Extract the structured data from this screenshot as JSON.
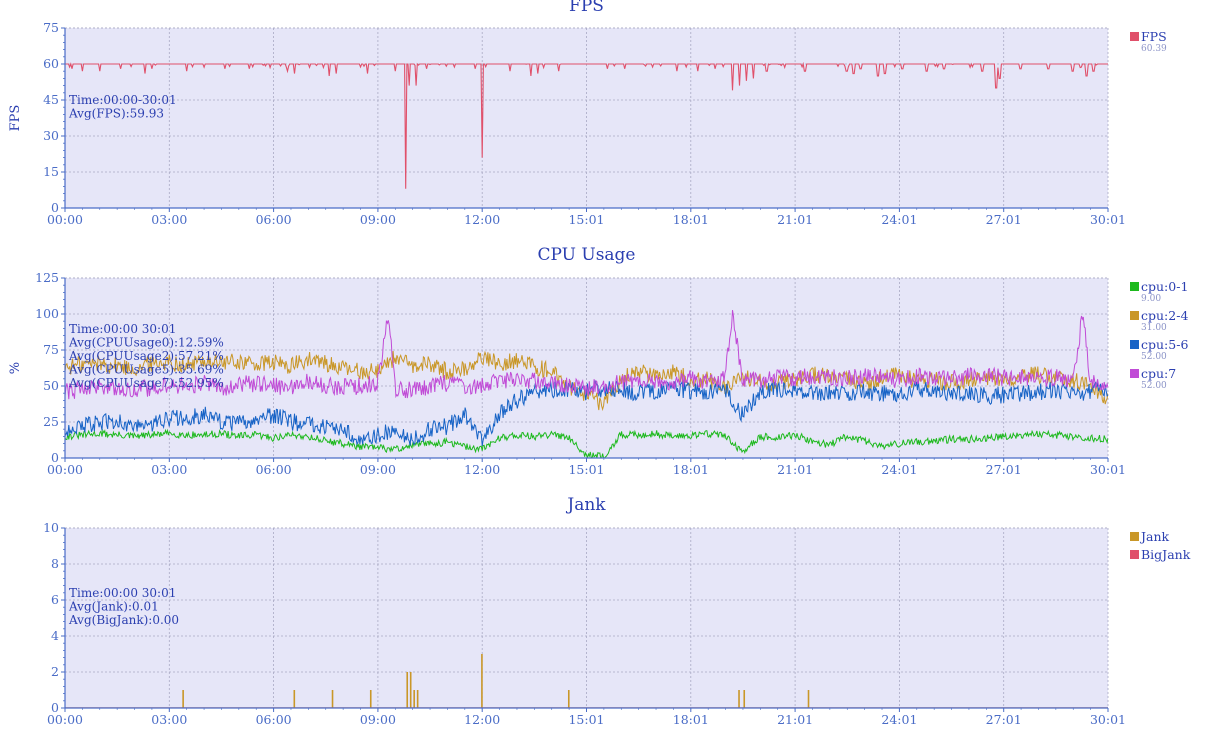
{
  "x_axis_ticks": [
    "00:00",
    "03:00",
    "06:00",
    "09:00",
    "12:00",
    "15:01",
    "18:01",
    "21:01",
    "24:01",
    "27:01",
    "30:01"
  ],
  "chart_data": [
    {
      "type": "line",
      "title": "FPS",
      "ylabel": "FPS",
      "ylim": [
        0,
        75
      ],
      "yticks": [
        0,
        15,
        30,
        45,
        60,
        75
      ],
      "x_unit": "minutes",
      "xlim": [
        0,
        30.02
      ],
      "grid": true,
      "legend_position": "right",
      "annotation": [
        "Time:00:00-30:01",
        "Avg(FPS):59.93"
      ],
      "baseline_series": [
        {
          "name": "FPS",
          "color": "#e0506a",
          "baseline": 60,
          "legend_value": "60.39",
          "dips": [
            [
              0.2,
              58
            ],
            [
              0.5,
              57
            ],
            [
              1.0,
              57
            ],
            [
              1.6,
              58
            ],
            [
              2.3,
              56
            ],
            [
              2.5,
              58
            ],
            [
              3.5,
              57
            ],
            [
              4.6,
              58
            ],
            [
              5.3,
              58
            ],
            [
              6.4,
              57
            ],
            [
              6.6,
              56
            ],
            [
              7.6,
              55
            ],
            [
              7.8,
              56
            ],
            [
              8.7,
              56
            ],
            [
              9.5,
              57
            ],
            [
              9.8,
              8
            ],
            [
              9.9,
              51
            ],
            [
              10.1,
              51
            ],
            [
              10.4,
              58
            ],
            [
              11.8,
              58
            ],
            [
              12.0,
              21
            ],
            [
              12.8,
              57
            ],
            [
              13.4,
              55
            ],
            [
              13.6,
              56
            ],
            [
              14.2,
              57
            ],
            [
              15.6,
              58
            ],
            [
              16.1,
              58
            ],
            [
              17.6,
              57
            ],
            [
              18.2,
              57
            ],
            [
              18.7,
              58
            ],
            [
              19.2,
              49
            ],
            [
              19.4,
              51
            ],
            [
              19.6,
              53
            ],
            [
              19.8,
              54
            ],
            [
              20.2,
              57
            ],
            [
              21.3,
              57
            ],
            [
              22.5,
              57
            ],
            [
              22.7,
              56
            ],
            [
              22.9,
              58
            ],
            [
              23.4,
              55
            ],
            [
              23.6,
              56
            ],
            [
              24.1,
              58
            ],
            [
              24.8,
              57
            ],
            [
              25.3,
              58
            ],
            [
              26.4,
              57
            ],
            [
              26.8,
              50
            ],
            [
              26.9,
              54
            ],
            [
              27.5,
              58
            ],
            [
              28.3,
              58
            ],
            [
              29.0,
              57
            ],
            [
              29.4,
              55
            ],
            [
              29.6,
              57
            ]
          ]
        }
      ]
    },
    {
      "type": "line",
      "title": "CPU Usage",
      "ylabel": "%",
      "ylim": [
        0,
        125
      ],
      "yticks": [
        0,
        25,
        50,
        75,
        100,
        125
      ],
      "x_unit": "minutes",
      "xlim": [
        0,
        30.02
      ],
      "grid": true,
      "legend_position": "right",
      "annotation": [
        "Time:00:00 30:01",
        "Avg(CPUUsage0):12.59%",
        "Avg(CPUUsage2):57.21%",
        "Avg(CPUUsage5):35.69%",
        "Avg(CPUUsage7):52.95%"
      ],
      "series": [
        {
          "name": "cpu:0-1",
          "color": "#1db91d",
          "legend_value": "9.00",
          "x": [
            0,
            0.5,
            1,
            1.5,
            2,
            2.5,
            3,
            3.5,
            4,
            4.5,
            5,
            5.5,
            6,
            6.5,
            7,
            7.5,
            8,
            8.5,
            9,
            9.5,
            10,
            10.5,
            11,
            11.5,
            12,
            12.5,
            13,
            13.5,
            14,
            14.5,
            15,
            15.5,
            16,
            16.5,
            17,
            17.5,
            18,
            18.5,
            19,
            19.5,
            20,
            20.5,
            21,
            21.5,
            22,
            22.5,
            23,
            23.5,
            24,
            24.5,
            25,
            25.5,
            26,
            26.5,
            27,
            27.5,
            28,
            28.5,
            29,
            29.5,
            30
          ],
          "y": [
            15,
            16,
            17,
            16,
            15,
            16,
            17,
            16,
            16,
            17,
            15,
            16,
            14,
            16,
            15,
            12,
            10,
            8,
            7,
            6,
            9,
            10,
            11,
            8,
            6,
            14,
            16,
            15,
            16,
            15,
            2,
            1,
            16,
            16,
            17,
            15,
            16,
            17,
            16,
            3,
            15,
            14,
            16,
            12,
            9,
            15,
            12,
            8,
            10,
            11,
            12,
            13,
            13,
            14,
            15,
            16,
            17,
            16,
            15,
            14,
            13
          ]
        },
        {
          "name": "cpu:2-4",
          "color": "#c99728",
          "legend_value": "31.00",
          "x": [
            0,
            0.5,
            1,
            1.5,
            2,
            2.5,
            3,
            3.5,
            4,
            4.5,
            5,
            5.5,
            6,
            6.5,
            7,
            7.5,
            8,
            8.5,
            9,
            9.5,
            10,
            10.5,
            11,
            11.5,
            12,
            12.5,
            13,
            13.5,
            14,
            14.5,
            15,
            15.5,
            16,
            16.5,
            17,
            17.5,
            18,
            18.5,
            19,
            19.5,
            20,
            20.5,
            21,
            21.5,
            22,
            22.5,
            23,
            23.5,
            24,
            24.5,
            25,
            25.5,
            26,
            26.5,
            27,
            27.5,
            28,
            28.5,
            29,
            29.5,
            30
          ],
          "y": [
            63,
            65,
            66,
            64,
            62,
            66,
            67,
            64,
            68,
            66,
            67,
            65,
            66,
            64,
            68,
            66,
            62,
            60,
            61,
            70,
            63,
            66,
            60,
            62,
            70,
            66,
            68,
            64,
            60,
            50,
            42,
            38,
            55,
            60,
            58,
            60,
            56,
            54,
            50,
            56,
            54,
            52,
            55,
            58,
            56,
            54,
            52,
            55,
            58,
            53,
            54,
            52,
            54,
            56,
            55,
            57,
            58,
            56,
            54,
            50,
            40
          ]
        },
        {
          "name": "cpu:5-6",
          "color": "#1763c6",
          "legend_value": "52.00",
          "x": [
            0,
            0.5,
            1,
            1.5,
            2,
            2.5,
            3,
            3.5,
            4,
            4.5,
            5,
            5.5,
            6,
            6.5,
            7,
            7.5,
            8,
            8.5,
            9,
            9.5,
            10,
            10.5,
            11,
            11.5,
            12,
            12.5,
            13,
            13.5,
            14,
            14.5,
            15,
            15.5,
            16,
            16.5,
            17,
            17.5,
            18,
            18.5,
            19,
            19.5,
            20,
            20.5,
            21,
            21.5,
            22,
            22.5,
            23,
            23.5,
            24,
            24.5,
            25,
            25.5,
            26,
            26.5,
            27,
            27.5,
            28,
            28.5,
            29,
            29.5,
            30
          ],
          "y": [
            20,
            22,
            24,
            26,
            22,
            23,
            27,
            28,
            30,
            25,
            24,
            26,
            30,
            25,
            24,
            22,
            18,
            14,
            16,
            20,
            12,
            20,
            22,
            30,
            14,
            30,
            40,
            46,
            48,
            47,
            46,
            48,
            47,
            45,
            46,
            48,
            47,
            46,
            48,
            30,
            46,
            48,
            47,
            45,
            46,
            44,
            46,
            45,
            44,
            48,
            46,
            45,
            44,
            43,
            44,
            45,
            46,
            47,
            44,
            46,
            48
          ]
        },
        {
          "name": "cpu:7",
          "color": "#c04bd6",
          "legend_value": "52.00",
          "x": [
            0,
            0.5,
            1,
            1.5,
            2,
            2.5,
            3,
            3.5,
            4,
            4.5,
            5,
            5.5,
            6,
            6.5,
            7,
            7.5,
            8,
            8.5,
            9,
            9.3,
            9.5,
            10,
            10.5,
            11,
            11.5,
            12,
            12.5,
            13,
            13.5,
            14,
            14.5,
            15,
            15.5,
            16,
            16.5,
            17,
            17.5,
            18,
            18.5,
            19,
            19.2,
            19.5,
            20,
            20.5,
            21,
            21.5,
            22,
            22.5,
            23,
            23.5,
            24,
            24.5,
            25,
            25.5,
            26,
            26.5,
            27,
            27.5,
            28,
            28.5,
            29,
            29.3,
            29.5,
            30
          ],
          "y": [
            46,
            48,
            50,
            49,
            47,
            49,
            51,
            50,
            52,
            48,
            52,
            51,
            50,
            49,
            53,
            51,
            49,
            50,
            52,
            100,
            48,
            47,
            50,
            52,
            49,
            51,
            55,
            53,
            54,
            52,
            50,
            48,
            50,
            53,
            55,
            54,
            52,
            55,
            53,
            56,
            100,
            55,
            54,
            56,
            55,
            57,
            56,
            55,
            58,
            56,
            54,
            57,
            56,
            55,
            57,
            58,
            56,
            57,
            55,
            56,
            54,
            100,
            52,
            50
          ]
        }
      ]
    },
    {
      "type": "bar",
      "title": "Jank",
      "ylabel": "",
      "ylim": [
        0,
        10
      ],
      "yticks": [
        0,
        2,
        4,
        6,
        8,
        10
      ],
      "x_unit": "minutes",
      "xlim": [
        0,
        30.02
      ],
      "grid": true,
      "legend_position": "right",
      "annotation": [
        "Time:00:00 30:01",
        "Avg(Jank):0.01",
        "Avg(BigJank):0.00"
      ],
      "series": [
        {
          "name": "Jank",
          "color": "#c99728",
          "legend_value": "",
          "x": [
            3.4,
            6.6,
            7.7,
            8.8,
            9.85,
            9.95,
            10.05,
            10.15,
            12.0,
            14.5,
            19.4,
            19.55,
            21.4
          ],
          "y": [
            1,
            1,
            1,
            1,
            2,
            2,
            1,
            1,
            3,
            1,
            1,
            1,
            1
          ]
        },
        {
          "name": "BigJank",
          "color": "#e0506a",
          "legend_value": "",
          "x": [],
          "y": []
        }
      ]
    }
  ]
}
